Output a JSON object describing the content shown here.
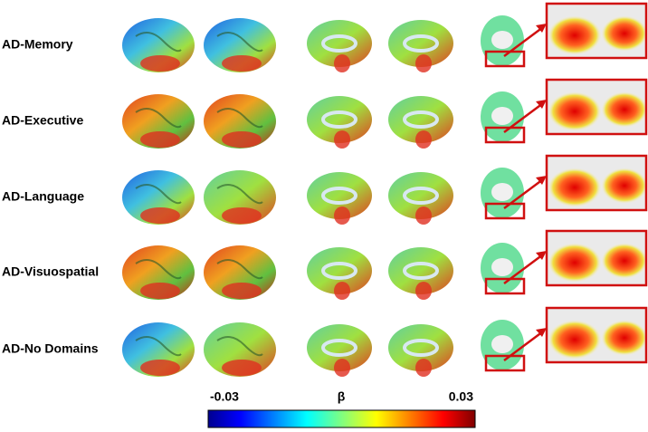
{
  "rows": [
    {
      "label": "AD-Memory"
    },
    {
      "label": "AD-Executive"
    },
    {
      "label": "AD-Language"
    },
    {
      "label": "AD-Visuospatial"
    },
    {
      "label": "AD-No Domains"
    }
  ],
  "colorbar": {
    "label": "β",
    "min": -0.03,
    "max": 0.03
  }
}
